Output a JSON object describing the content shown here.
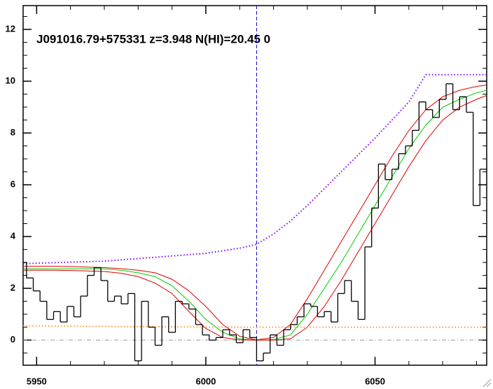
{
  "chart_data": {
    "type": "spectrum",
    "title": "J091016.79+575331 z=3.948 N(HI)=20.45 0",
    "xlim": [
      5946,
      6083
    ],
    "ylim": [
      -0.97,
      12.92
    ],
    "xticks": [
      5950,
      6000,
      6050
    ],
    "yticks": [
      0,
      2,
      4,
      6,
      8,
      10,
      12
    ],
    "vline": 6015,
    "hline": 0,
    "flux": {
      "color": "#000000",
      "x": [
        5946,
        5948,
        5950,
        5952,
        5954,
        5956,
        5958,
        5960,
        5962,
        5964,
        5966,
        5968,
        5970,
        5972,
        5974,
        5976,
        5978,
        5980,
        5982,
        5984,
        5986,
        5988,
        5990,
        5992,
        5994,
        5996,
        5998,
        6000,
        6002,
        6004,
        6006,
        6008,
        6010,
        6012,
        6014,
        6016,
        6018,
        6020,
        6022,
        6024,
        6026,
        6028,
        6030,
        6032,
        6034,
        6036,
        6038,
        6040,
        6042,
        6044,
        6046,
        6048,
        6050,
        6052,
        6054,
        6056,
        6058,
        6060,
        6062,
        6064,
        6066,
        6068,
        6070,
        6072,
        6074,
        6076,
        6078,
        6080,
        6082
      ],
      "values": [
        3.0,
        2.4,
        1.9,
        1.5,
        0.8,
        1.1,
        0.7,
        1.3,
        0.9,
        1.7,
        2.5,
        2.8,
        2.3,
        1.5,
        1.7,
        1.4,
        1.8,
        -0.8,
        1.5,
        0.5,
        -0.2,
        0.9,
        0.3,
        1.5,
        1.4,
        1.2,
        0.6,
        0.2,
        0.0,
        0.1,
        0.4,
        0.2,
        -0.1,
        0.4,
        0.1,
        -0.8,
        -0.5,
        0.2,
        -0.2,
        0.4,
        0.6,
        0.9,
        1.4,
        1.3,
        0.9,
        1.1,
        0.7,
        1.8,
        2.3,
        1.5,
        0.8,
        3.6,
        5.1,
        6.8,
        6.2,
        6.6,
        7.2,
        7.5,
        8.1,
        9.2,
        8.9,
        8.6,
        9.3,
        9.9,
        8.9,
        9.4,
        8.8,
        5.2,
        6.6
      ]
    },
    "x": [
      5946,
      5950,
      5955,
      5960,
      5965,
      5970,
      5975,
      5980,
      5985,
      5990,
      5995,
      6000,
      6005,
      6010,
      6015,
      6020,
      6025,
      6030,
      6035,
      6040,
      6045,
      6050,
      6055,
      6060,
      6065,
      6070,
      6075,
      6080,
      6083
    ],
    "series": [
      {
        "color": "#00cc00",
        "style": "solid",
        "values": [
          2.75,
          2.75,
          2.75,
          2.75,
          2.75,
          2.75,
          2.7,
          2.6,
          2.45,
          2.1,
          1.5,
          0.8,
          0.3,
          0.05,
          0,
          0.02,
          0.2,
          1.0,
          2.0,
          3.0,
          4.1,
          5.2,
          6.3,
          7.4,
          8.3,
          9.0,
          9.3,
          9.55,
          9.65
        ]
      },
      {
        "color": "#dd0000",
        "style": "solid",
        "values": [
          2.85,
          2.85,
          2.85,
          2.84,
          2.82,
          2.8,
          2.76,
          2.7,
          2.6,
          2.35,
          1.9,
          1.3,
          0.6,
          0.15,
          0.01,
          0.1,
          0.6,
          1.6,
          2.7,
          3.8,
          4.9,
          6.0,
          7.1,
          8.1,
          8.9,
          9.4,
          9.65,
          9.8,
          9.85
        ]
      },
      {
        "color": "#dd0000",
        "style": "solid",
        "values": [
          2.7,
          2.7,
          2.7,
          2.69,
          2.67,
          2.65,
          2.58,
          2.45,
          2.2,
          1.8,
          1.1,
          0.45,
          0.1,
          0.01,
          0,
          0,
          0.05,
          0.5,
          1.3,
          2.3,
          3.4,
          4.5,
          5.6,
          6.7,
          7.7,
          8.5,
          9.0,
          9.3,
          9.45
        ]
      },
      {
        "color": "#8000ff",
        "style": "dotted",
        "values": [
          2.95,
          2.97,
          2.99,
          3.01,
          3.03,
          3.05,
          3.1,
          3.15,
          3.2,
          3.25,
          3.3,
          3.35,
          3.45,
          3.55,
          3.7,
          4.1,
          4.6,
          5.2,
          5.85,
          6.5,
          7.15,
          7.8,
          8.5,
          9.2,
          10.25,
          10.25,
          10.25,
          10.25,
          10.25
        ]
      },
      {
        "color": "#ff9933",
        "style": "dotted",
        "values": [
          0.55,
          0.55,
          0.54,
          0.54,
          0.53,
          0.53,
          0.52,
          0.52,
          0.52,
          0.51,
          0.51,
          0.5,
          0.5,
          0.5,
          0.5,
          0.5,
          0.5,
          0.5,
          0.5,
          0.5,
          0.5,
          0.5,
          0.5,
          0.5,
          0.5,
          0.5,
          0.5,
          0.5,
          0.5
        ]
      }
    ]
  }
}
